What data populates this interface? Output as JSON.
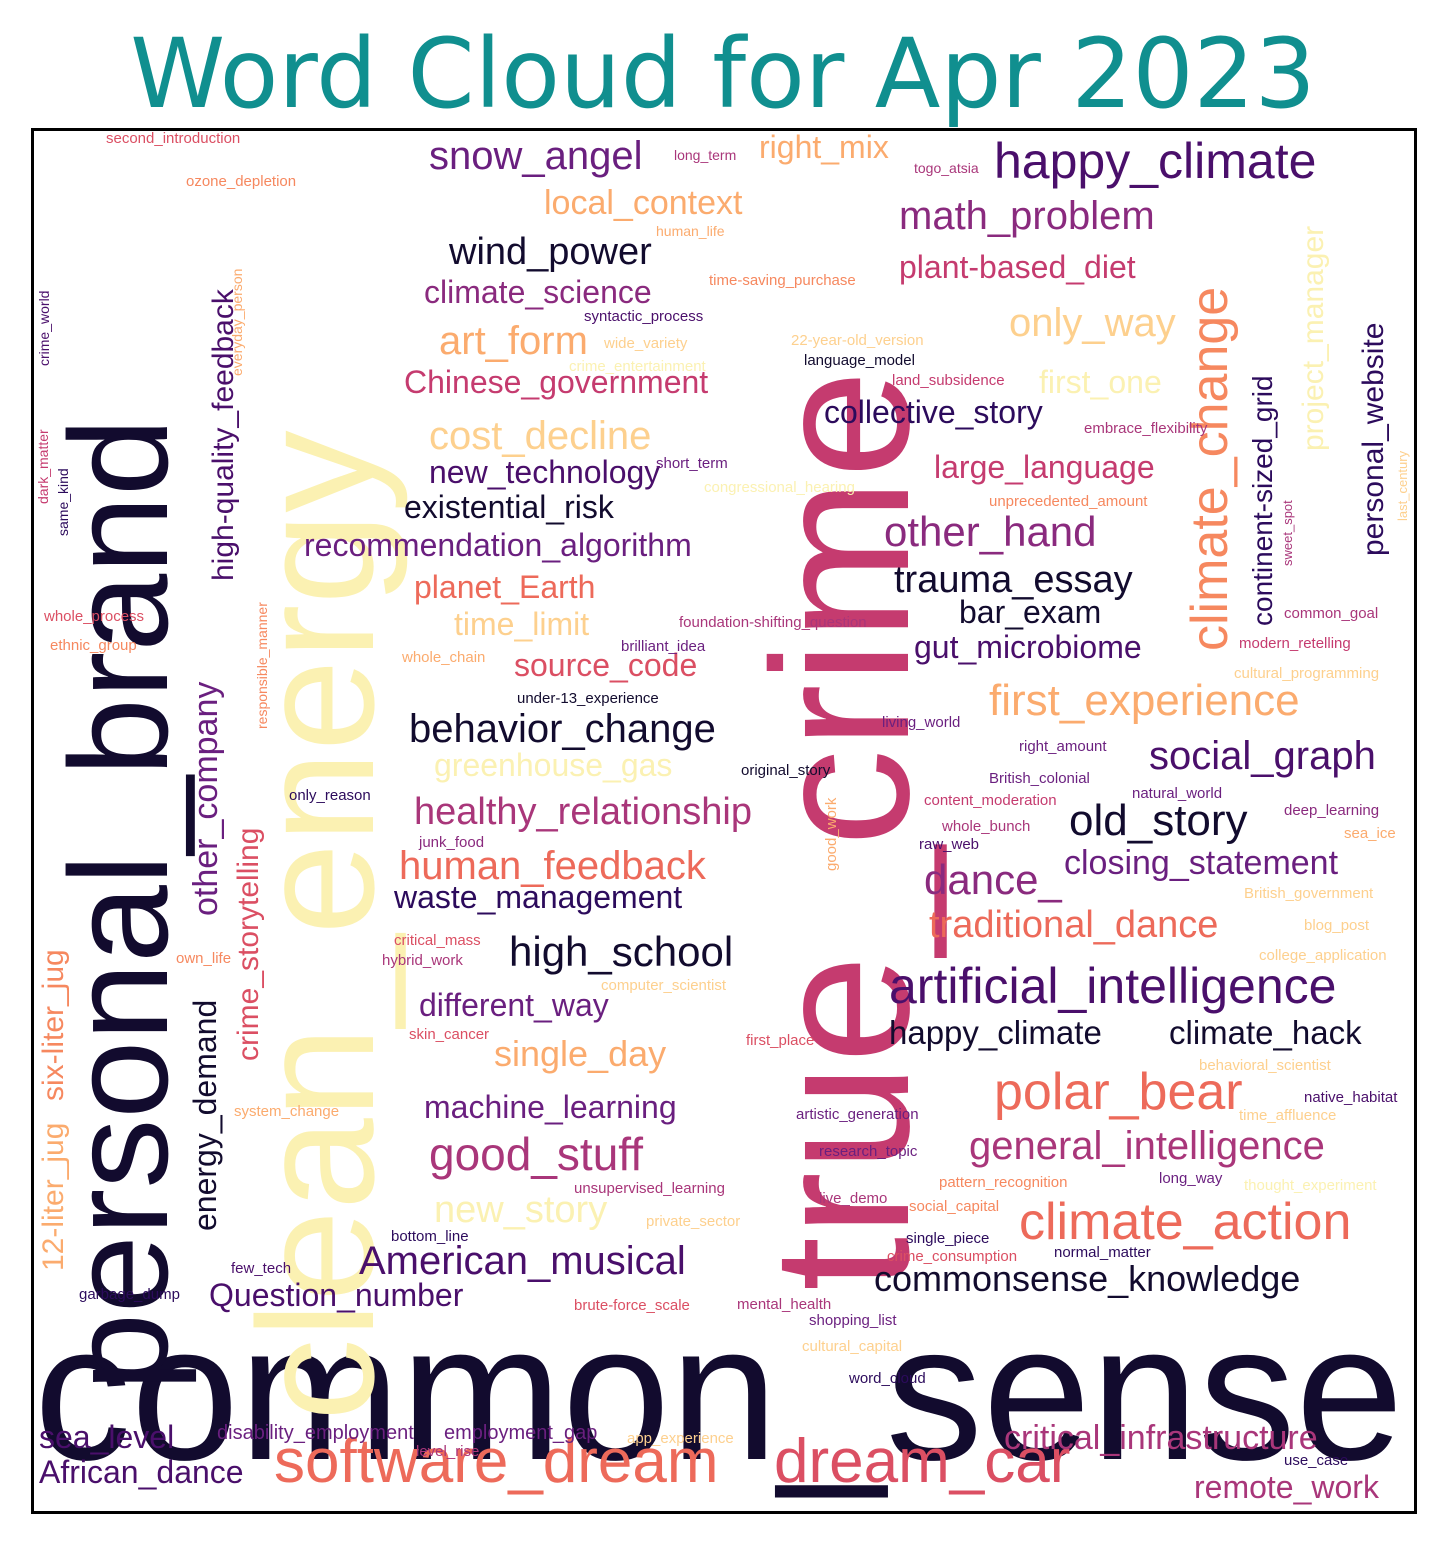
{
  "title": "Word Cloud for Apr 2023",
  "palette": [
    "#0d0887",
    "#120b2e",
    "#2c0b5c",
    "#4a0f6b",
    "#6a1f7f",
    "#8a2a7e",
    "#a9367a",
    "#c53b6f",
    "#db4f63",
    "#ed6a5a",
    "#f6885f",
    "#fbab6e",
    "#fdd08e",
    "#fbf1b2"
  ],
  "words": [
    {
      "text": "common_sense",
      "color": "#120b2e"
    },
    {
      "text": "true_crime",
      "color": "#c53b6f"
    },
    {
      "text": "clean_energy",
      "color": "#fbf1b2"
    },
    {
      "text": "personal_brand",
      "color": "#120b2e"
    },
    {
      "text": "software_dream",
      "color": "#ed6a5a"
    },
    {
      "text": "dream_car",
      "color": "#db4f63"
    },
    {
      "text": "happy_climate",
      "color": "#4a0f6b"
    },
    {
      "text": "climate_change",
      "color": "#f6885f"
    },
    {
      "text": "artificial_intelligence",
      "color": "#4a0f6b"
    },
    {
      "text": "polar_bear",
      "color": "#ed6a5a"
    },
    {
      "text": "climate_action",
      "color": "#ed6a5a"
    },
    {
      "text": "first_experience",
      "color": "#fbab6e"
    },
    {
      "text": "snow_angel",
      "color": "#6a1f7f"
    },
    {
      "text": "math_problem",
      "color": "#8a2a7e"
    },
    {
      "text": "other_hand",
      "color": "#8a2a7e"
    },
    {
      "text": "behavior_change",
      "color": "#120b2e"
    },
    {
      "text": "old_story",
      "color": "#120b2e"
    },
    {
      "text": "general_intelligence",
      "color": "#a9367a"
    },
    {
      "text": "commonsense_knowledge",
      "color": "#120b2e"
    },
    {
      "text": "American_musical",
      "color": "#4a0f6b"
    },
    {
      "text": "good_stuff",
      "color": "#a9367a"
    },
    {
      "text": "high_school",
      "color": "#120b2e"
    },
    {
      "text": "human_feedback",
      "color": "#ed6a5a"
    },
    {
      "text": "healthy_relationship",
      "color": "#a9367a"
    },
    {
      "text": "cost_decline",
      "color": "#fdd08e"
    },
    {
      "text": "art_form",
      "color": "#fbab6e"
    },
    {
      "text": "wind_power",
      "color": "#120b2e"
    },
    {
      "text": "only_way",
      "color": "#fdd08e"
    },
    {
      "text": "trauma_essay",
      "color": "#120b2e"
    },
    {
      "text": "social_graph",
      "color": "#4a0f6b"
    },
    {
      "text": "dance_",
      "color": "#8a2a7e"
    },
    {
      "text": "traditional_dance",
      "color": "#ed6a5a"
    },
    {
      "text": "closing_statement",
      "color": "#6a1f7f"
    },
    {
      "text": "critical_infrastructure",
      "color": "#a9367a"
    },
    {
      "text": "remote_work",
      "color": "#a9367a"
    },
    {
      "text": "African_dance",
      "color": "#4a0f6b"
    },
    {
      "text": "sea_level",
      "color": "#4a0f6b"
    },
    {
      "text": "other_company",
      "color": "#6a1f7f"
    },
    {
      "text": "high-quality_feedback",
      "color": "#4a0f6b"
    },
    {
      "text": "crime_storytelling",
      "color": "#db4f63"
    },
    {
      "text": "energy_demand",
      "color": "#120b2e"
    },
    {
      "text": "12-liter_jug",
      "color": "#fbab6e"
    },
    {
      "text": "six-liter_jug",
      "color": "#f6885f"
    },
    {
      "text": "project_manager",
      "color": "#fbf1b2"
    },
    {
      "text": "personal_website",
      "color": "#2c0b5c"
    },
    {
      "text": "continent-sized_grid",
      "color": "#2c0b5c"
    },
    {
      "text": "local_context",
      "color": "#fbab6e"
    },
    {
      "text": "right_mix",
      "color": "#fbab6e"
    },
    {
      "text": "climate_science",
      "color": "#8a2a7e"
    },
    {
      "text": "plant-based_diet",
      "color": "#c53b6f"
    },
    {
      "text": "Chinese_government",
      "color": "#c53b6f"
    },
    {
      "text": "first_one",
      "color": "#fbf1b2"
    },
    {
      "text": "collective_story",
      "color": "#2c0b5c"
    },
    {
      "text": "new_technology",
      "color": "#4a0f6b"
    },
    {
      "text": "large_language",
      "color": "#c53b6f"
    },
    {
      "text": "existential_risk",
      "color": "#120b2e"
    },
    {
      "text": "recommendation_algorithm",
      "color": "#6a1f7f"
    },
    {
      "text": "planet_Earth",
      "color": "#ed6a5a"
    },
    {
      "text": "time_limit",
      "color": "#fdd08e"
    },
    {
      "text": "bar_exam",
      "color": "#120b2e"
    },
    {
      "text": "gut_microbiome",
      "color": "#4a0f6b"
    },
    {
      "text": "source_code",
      "color": "#db4f63"
    },
    {
      "text": "greenhouse_gas",
      "color": "#fbf1b2"
    },
    {
      "text": "waste_management",
      "color": "#2c0b5c"
    },
    {
      "text": "different_way",
      "color": "#6a1f7f"
    },
    {
      "text": "single_day",
      "color": "#fbab6e"
    },
    {
      "text": "machine_learning",
      "color": "#6a1f7f"
    },
    {
      "text": "new_story",
      "color": "#fbf1b2"
    },
    {
      "text": "Question_number",
      "color": "#4a0f6b"
    },
    {
      "text": "happy_climate",
      "color": "#120b2e"
    },
    {
      "text": "climate_hack",
      "color": "#120b2e"
    },
    {
      "text": "disability_employment",
      "color": "#6a1f7f"
    },
    {
      "text": "employment_gap",
      "color": "#6a1f7f"
    },
    {
      "text": "second_introduction",
      "color": "#db4f63"
    },
    {
      "text": "ozone_depletion",
      "color": "#f6885f"
    },
    {
      "text": "long_term",
      "color": "#a9367a"
    },
    {
      "text": "togo_atsia",
      "color": "#a9367a"
    },
    {
      "text": "human_life",
      "color": "#fbab6e"
    },
    {
      "text": "time-saving_purchase",
      "color": "#f6885f"
    },
    {
      "text": "syntactic_process",
      "color": "#4a0f6b"
    },
    {
      "text": "wide_variety",
      "color": "#fdd08e"
    },
    {
      "text": "crime_entertainment",
      "color": "#fbf1b2"
    },
    {
      "text": "22-year-old_version",
      "color": "#fdd08e"
    },
    {
      "text": "language_model",
      "color": "#120b2e"
    },
    {
      "text": "land_subsidence",
      "color": "#c53b6f"
    },
    {
      "text": "embrace_flexibility",
      "color": "#a9367a"
    },
    {
      "text": "short_term",
      "color": "#6a1f7f"
    },
    {
      "text": "congressional_hearing",
      "color": "#fbf1b2"
    },
    {
      "text": "unprecedented_amount",
      "color": "#f6885f"
    },
    {
      "text": "foundation-shifting_question",
      "color": "#a9367a"
    },
    {
      "text": "brilliant_idea",
      "color": "#6a1f7f"
    },
    {
      "text": "under-13_experience",
      "color": "#120b2e"
    },
    {
      "text": "whole_chain",
      "color": "#fbab6e"
    },
    {
      "text": "living_world",
      "color": "#6a1f7f"
    },
    {
      "text": "right_amount",
      "color": "#6a1f7f"
    },
    {
      "text": "British_colonial",
      "color": "#6a1f7f"
    },
    {
      "text": "natural_world",
      "color": "#6a1f7f"
    },
    {
      "text": "content_moderation",
      "color": "#c53b6f"
    },
    {
      "text": "deep_learning",
      "color": "#8a2a7e"
    },
    {
      "text": "whole_bunch",
      "color": "#a9367a"
    },
    {
      "text": "raw_web",
      "color": "#4a0f6b"
    },
    {
      "text": "sea_ice",
      "color": "#fbab6e"
    },
    {
      "text": "original_story",
      "color": "#120b2e"
    },
    {
      "text": "only_reason",
      "color": "#2c0b5c"
    },
    {
      "text": "junk_food",
      "color": "#8a2a7e"
    },
    {
      "text": "good_work",
      "color": "#fbab6e"
    },
    {
      "text": "common_goal",
      "color": "#a9367a"
    },
    {
      "text": "modern_retelling",
      "color": "#c53b6f"
    },
    {
      "text": "cultural_programming",
      "color": "#fdd08e"
    },
    {
      "text": "British_government",
      "color": "#fdd08e"
    },
    {
      "text": "blog_post",
      "color": "#fdd08e"
    },
    {
      "text": "college_application",
      "color": "#fdd08e"
    },
    {
      "text": "behavioral_scientist",
      "color": "#fdd08e"
    },
    {
      "text": "native_habitat",
      "color": "#4a0f6b"
    },
    {
      "text": "time_affluence",
      "color": "#fdd08e"
    },
    {
      "text": "thought_experiment",
      "color": "#fbf1b2"
    },
    {
      "text": "long_way",
      "color": "#6a1f7f"
    },
    {
      "text": "pattern_recognition",
      "color": "#f6885f"
    },
    {
      "text": "social_capital",
      "color": "#f6885f"
    },
    {
      "text": "single_piece",
      "color": "#2c0b5c"
    },
    {
      "text": "crime_consumption",
      "color": "#db4f63"
    },
    {
      "text": "normal_matter",
      "color": "#2c0b5c"
    },
    {
      "text": "use_case",
      "color": "#2c0b5c"
    },
    {
      "text": "critical_mass",
      "color": "#db4f63"
    },
    {
      "text": "hybrid_work",
      "color": "#a9367a"
    },
    {
      "text": "own_life",
      "color": "#f6885f"
    },
    {
      "text": "computer_scientist",
      "color": "#fdd08e"
    },
    {
      "text": "skin_cancer",
      "color": "#db4f63"
    },
    {
      "text": "first_place",
      "color": "#db4f63"
    },
    {
      "text": "artistic_generation",
      "color": "#6a1f7f"
    },
    {
      "text": "research_topic",
      "color": "#6a1f7f"
    },
    {
      "text": "system_change",
      "color": "#fbab6e"
    },
    {
      "text": "unsupervised_learning",
      "color": "#a9367a"
    },
    {
      "text": "live_demo",
      "color": "#a9367a"
    },
    {
      "text": "private_sector",
      "color": "#fdd08e"
    },
    {
      "text": "bottom_line",
      "color": "#2c0b5c"
    },
    {
      "text": "few_tech",
      "color": "#4a0f6b"
    },
    {
      "text": "garbage_dump",
      "color": "#2c0b5c"
    },
    {
      "text": "brute-force_scale",
      "color": "#db4f63"
    },
    {
      "text": "mental_health",
      "color": "#a9367a"
    },
    {
      "text": "shopping_list",
      "color": "#6a1f7f"
    },
    {
      "text": "cultural_capital",
      "color": "#fdd08e"
    },
    {
      "text": "word_cloud",
      "color": "#2c0b5c"
    },
    {
      "text": "level_rise",
      "color": "#a9367a"
    },
    {
      "text": "app_experience",
      "color": "#fdd08e"
    },
    {
      "text": "whole_process",
      "color": "#db4f63"
    },
    {
      "text": "ethnic_group",
      "color": "#f6885f"
    },
    {
      "text": "crime_world",
      "color": "#4a0f6b"
    },
    {
      "text": "everyday_person",
      "color": "#fbab6e"
    },
    {
      "text": "dark_matter",
      "color": "#c53b6f"
    },
    {
      "text": "same_kind",
      "color": "#2c0b5c"
    },
    {
      "text": "responsible_manner",
      "color": "#f6885f"
    },
    {
      "text": "sweet_spot",
      "color": "#a9367a"
    },
    {
      "text": "last_century",
      "color": "#fdd08e"
    }
  ]
}
